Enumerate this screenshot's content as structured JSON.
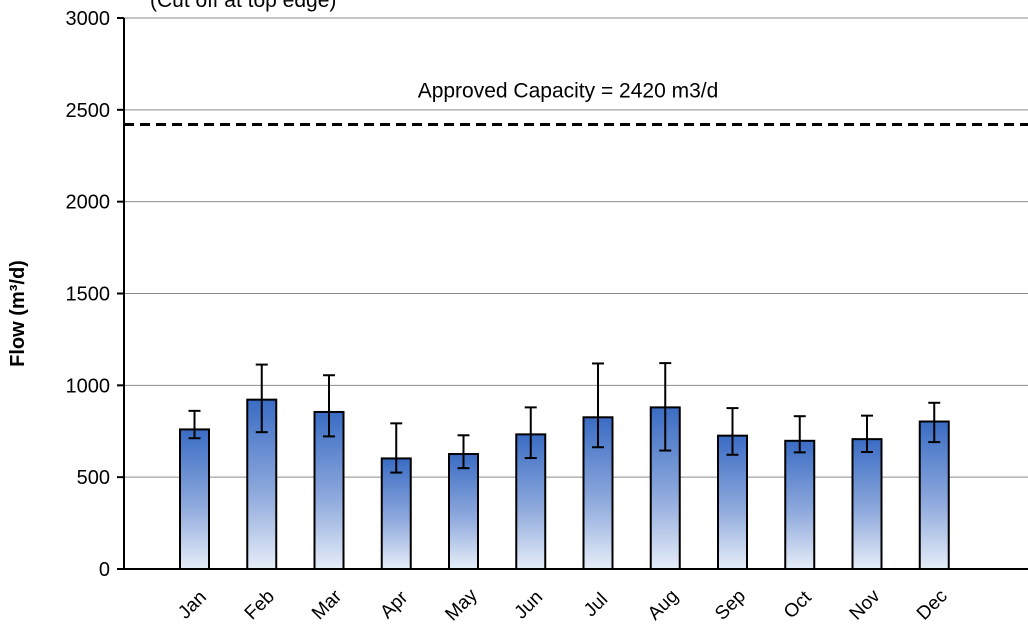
{
  "chart_data": {
    "type": "bar",
    "title": "(Cut off at top edge)",
    "categories": [
      "Jan",
      "Feb",
      "Mar",
      "Apr",
      "May",
      "Jun",
      "Jul",
      "Aug",
      "Sep",
      "Oct",
      "Nov",
      "Dec"
    ],
    "series": [
      {
        "values": [
          760,
          922,
          855,
          602,
          626,
          733,
          826,
          880,
          726,
          698,
          707,
          803
        ],
        "error_low": [
          712,
          745,
          722,
          525,
          549,
          604,
          663,
          645,
          622,
          635,
          637,
          691
        ],
        "error_high": [
          861,
          1113,
          1055,
          793,
          728,
          880,
          1119,
          1121,
          876,
          832,
          835,
          905
        ]
      }
    ],
    "ylabel": "Flow (m³/d)",
    "xlabel": "",
    "ylim": [
      0,
      3000
    ],
    "yticks": [
      0,
      500,
      1000,
      1500,
      2000,
      2500,
      3000
    ],
    "grid": true,
    "legend": "none",
    "reference_line": {
      "value": 2420,
      "label": "Approved Capacity = 2420 m3/d",
      "style": "dashed"
    },
    "colors": {
      "bar_top": "#3a6cc4",
      "bar_bottom": "#e6edf8",
      "bar_outline": "#000000",
      "grid": "#8c8c8c",
      "reference": "#000000"
    }
  }
}
